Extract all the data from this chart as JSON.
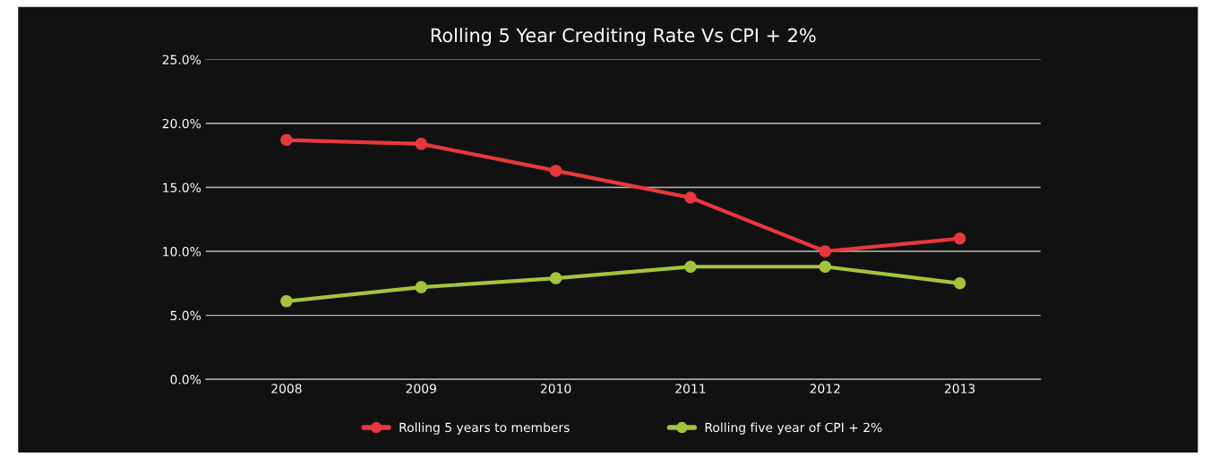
{
  "chart_data": {
    "type": "line",
    "title": "Rolling 5 Year Crediting Rate Vs CPI + 2%",
    "categories": [
      "2008",
      "2009",
      "2010",
      "2011",
      "2012",
      "2013"
    ],
    "series": [
      {
        "name": "Rolling 5 years to members",
        "color": "#e8383d",
        "values": [
          18.7,
          18.4,
          16.3,
          14.2,
          10.0,
          11.0
        ]
      },
      {
        "name": "Rolling five year of CPI + 2%",
        "color": "#a4c43a",
        "values": [
          6.1,
          7.2,
          7.9,
          8.8,
          8.8,
          7.5
        ]
      }
    ],
    "ylim": [
      0,
      25
    ],
    "yticks": [
      {
        "value": 0,
        "label": "0.0%"
      },
      {
        "value": 5,
        "label": "5.0%"
      },
      {
        "value": 10,
        "label": "10.0%"
      },
      {
        "value": 15,
        "label": "15.0%"
      },
      {
        "value": 20,
        "label": "20.0%"
      },
      {
        "value": 25,
        "label": "25.0%"
      }
    ],
    "grid": "y",
    "legend": "bottom",
    "marker": "circle",
    "line_style": "solid"
  }
}
